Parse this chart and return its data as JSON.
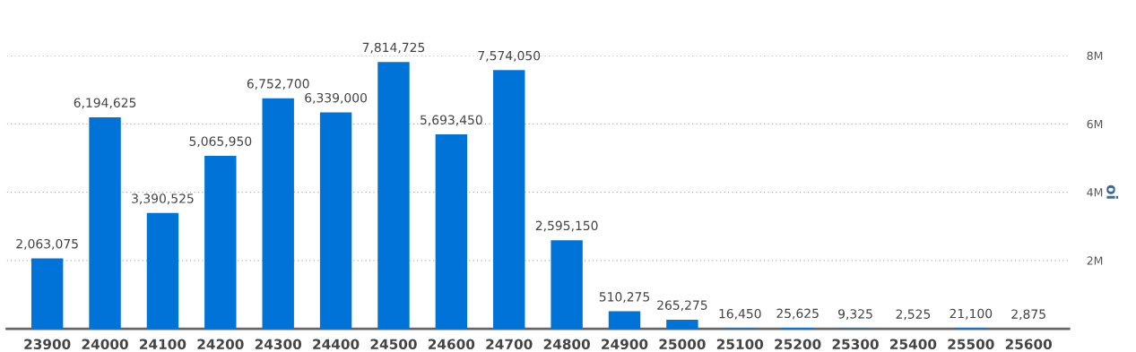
{
  "chart_data": {
    "type": "bar",
    "ylabel": "oi",
    "categories": [
      "23900",
      "24000",
      "24100",
      "24200",
      "24300",
      "24400",
      "24500",
      "24600",
      "24700",
      "24800",
      "24900",
      "25000",
      "25100",
      "25200",
      "25300",
      "25400",
      "25500",
      "25600"
    ],
    "values": [
      2063075,
      6194625,
      3390525,
      5065950,
      6752700,
      6339000,
      7814725,
      5693450,
      7574050,
      2595150,
      510275,
      265275,
      16450,
      25625,
      9325,
      2525,
      21100,
      2875
    ],
    "color": "#0073d9",
    "ylim": [
      0,
      8000000
    ],
    "yticks": [
      {
        "value": 2000000,
        "label": "2M"
      },
      {
        "value": 4000000,
        "label": "4M"
      },
      {
        "value": 6000000,
        "label": "6M"
      },
      {
        "value": 8000000,
        "label": "8M"
      }
    ],
    "value_labels": [
      "2,063,075",
      "6,194,625",
      "3,390,525",
      "5,065,950",
      "6,752,700",
      "6,339,000",
      "7,814,725",
      "5,693,450",
      "7,574,050",
      "2,595,150",
      "510,275",
      "265,275",
      "16,450",
      "25,625",
      "9,325",
      "2,525",
      "21,100",
      "2,875"
    ],
    "grid": "y"
  }
}
